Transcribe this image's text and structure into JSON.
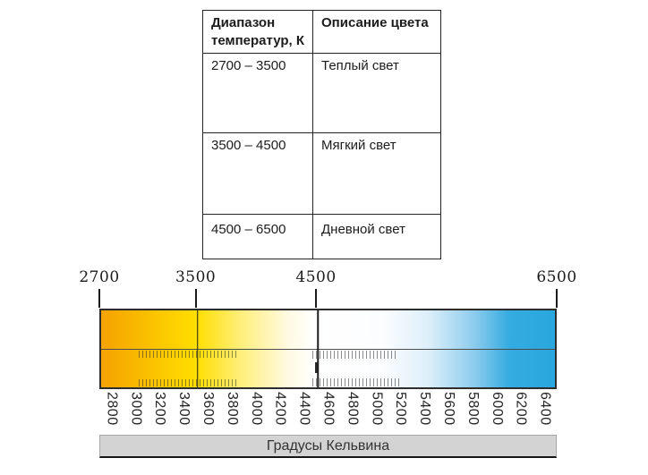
{
  "table": {
    "col1_header": "Диапазон температур, К",
    "col2_header": "Описание цвета",
    "rows": [
      {
        "range": "2700 – 3500",
        "description": "Теплый  свет"
      },
      {
        "range": "3500 – 4500",
        "description": "Мягкий свет"
      },
      {
        "range": "4500 – 6500",
        "description": "Дневной свет"
      }
    ]
  },
  "scale": {
    "unit_label": "Градусы Кельвина",
    "axis_min": 2700,
    "axis_max": 6500,
    "major_ticks": [
      {
        "label": "2700",
        "value": 2700
      },
      {
        "label": "3500",
        "value": 3500
      },
      {
        "label": "4500",
        "value": 4500
      },
      {
        "label": "6500",
        "value": 6500
      }
    ],
    "minor_ticks": [
      "2800",
      "3000",
      "3200",
      "3400",
      "3600",
      "3800",
      "4000",
      "4200",
      "4400",
      "4600",
      "4800",
      "5000",
      "5200",
      "5400",
      "5600",
      "5800",
      "6000",
      "6200",
      "6400"
    ],
    "dividers": [
      3500,
      4500
    ],
    "gradient_stops": [
      {
        "pos": 0,
        "color": "#f5a201"
      },
      {
        "pos": 8,
        "color": "#f9b900"
      },
      {
        "pos": 21,
        "color": "#ffde00"
      },
      {
        "pos": 31,
        "color": "#ffef7d"
      },
      {
        "pos": 41,
        "color": "#fffae0"
      },
      {
        "pos": 47,
        "color": "#ffffff"
      },
      {
        "pos": 62,
        "color": "#fcfdff"
      },
      {
        "pos": 72,
        "color": "#ddeffa"
      },
      {
        "pos": 82,
        "color": "#8fcdee"
      },
      {
        "pos": 90,
        "color": "#34abe0"
      },
      {
        "pos": 100,
        "color": "#29a7de"
      }
    ]
  }
}
